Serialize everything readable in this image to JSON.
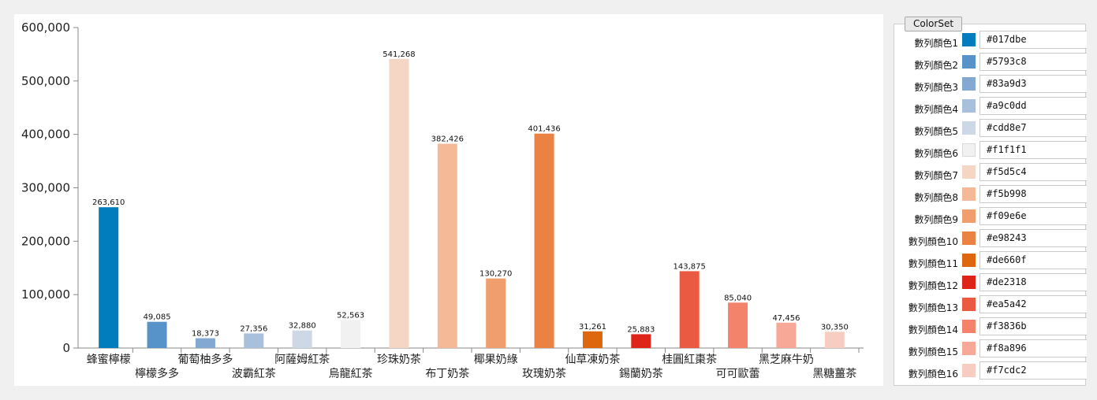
{
  "chart_data": {
    "type": "bar",
    "categories": [
      "蜂蜜檸檬",
      "檸檬多多",
      "葡萄柚多多",
      "波霸紅茶",
      "阿薩姆紅茶",
      "烏龍紅茶",
      "珍珠奶茶",
      "布丁奶茶",
      "椰果奶綠",
      "玫瑰奶茶",
      "仙草凍奶茶",
      "錫蘭奶茶",
      "桂圓紅棗茶",
      "可可歐蕾",
      "黑芝麻牛奶",
      "黑糖薑茶"
    ],
    "values": [
      263610,
      49085,
      18373,
      27356,
      32880,
      52563,
      541268,
      382426,
      130270,
      401436,
      31261,
      25883,
      143875,
      85040,
      47456,
      30350
    ],
    "value_labels": [
      "263,610",
      "49,085",
      "18,373",
      "27,356",
      "32,880",
      "52,563",
      "541,268",
      "382,426",
      "130,270",
      "401,436",
      "31,261",
      "25,883",
      "143,875",
      "85,040",
      "47,456",
      "30,350"
    ],
    "colors": [
      "#017dbe",
      "#5793c8",
      "#83a9d3",
      "#a9c0dd",
      "#cdd8e7",
      "#f1f1f1",
      "#f5d5c4",
      "#f5b998",
      "#f09e6e",
      "#e98243",
      "#de660f",
      "#de2318",
      "#ea5a42",
      "#f3836b",
      "#f8a896",
      "#f7cdc2"
    ],
    "ylim": [
      0,
      600000
    ],
    "yticks": [
      0,
      100000,
      200000,
      300000,
      400000,
      500000,
      600000
    ],
    "ytick_labels": [
      "0",
      "100,000",
      "200,000",
      "300,000",
      "400,000",
      "500,000",
      "600,000"
    ],
    "title": "",
    "xlabel": "",
    "ylabel": "",
    "grid": false,
    "legend": "none"
  },
  "colorset": {
    "title": "ColorSet",
    "items": [
      {
        "label": "數列顏色1",
        "hex": "#017dbe"
      },
      {
        "label": "數列顏色2",
        "hex": "#5793c8"
      },
      {
        "label": "數列顏色3",
        "hex": "#83a9d3"
      },
      {
        "label": "數列顏色4",
        "hex": "#a9c0dd"
      },
      {
        "label": "數列顏色5",
        "hex": "#cdd8e7"
      },
      {
        "label": "數列顏色6",
        "hex": "#f1f1f1"
      },
      {
        "label": "數列顏色7",
        "hex": "#f5d5c4"
      },
      {
        "label": "數列顏色8",
        "hex": "#f5b998"
      },
      {
        "label": "數列顏色9",
        "hex": "#f09e6e"
      },
      {
        "label": "數列顏色10",
        "hex": "#e98243"
      },
      {
        "label": "數列顏色11",
        "hex": "#de660f"
      },
      {
        "label": "數列顏色12",
        "hex": "#de2318"
      },
      {
        "label": "數列顏色13",
        "hex": "#ea5a42"
      },
      {
        "label": "數列顏色14",
        "hex": "#f3836b"
      },
      {
        "label": "數列顏色15",
        "hex": "#f8a896"
      },
      {
        "label": "數列顏色16",
        "hex": "#f7cdc2"
      }
    ]
  }
}
